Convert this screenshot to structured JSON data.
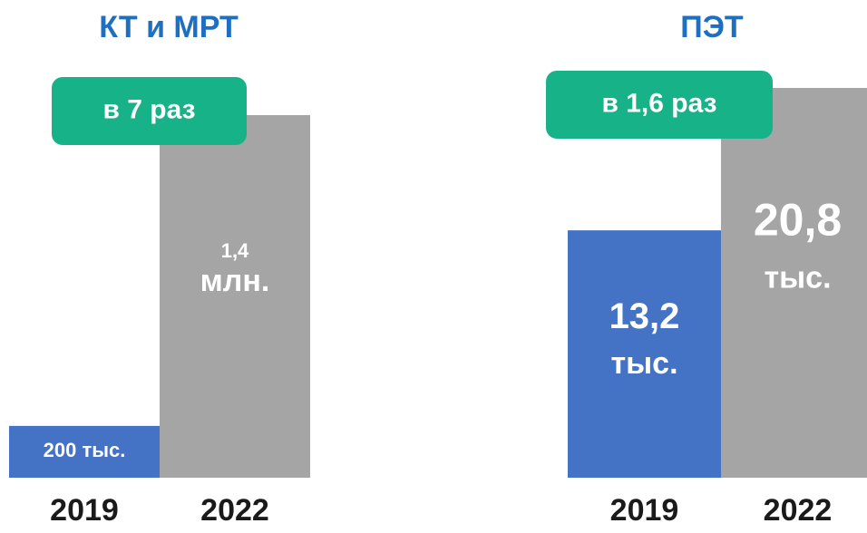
{
  "chart_data": [
    {
      "type": "bar",
      "title": "КТ и МРТ",
      "categories": [
        "2019",
        "2022"
      ],
      "values": [
        200000,
        1400000
      ],
      "value_labels": [
        "200 тыс.",
        "1,4 млн."
      ],
      "colors": [
        "#4472c4",
        "#a5a5a5"
      ],
      "ylim": [
        0,
        1400000
      ],
      "annotation": "в 7 раз"
    },
    {
      "type": "bar",
      "title": "ПЭТ",
      "categories": [
        "2019",
        "2022"
      ],
      "values": [
        13200,
        20800
      ],
      "value_labels": [
        "13,2 тыс.",
        "20,8 тыс."
      ],
      "colors": [
        "#4472c4",
        "#a5a5a5"
      ],
      "ylim": [
        0,
        20800
      ],
      "annotation": "в 1,6 раз"
    }
  ]
}
